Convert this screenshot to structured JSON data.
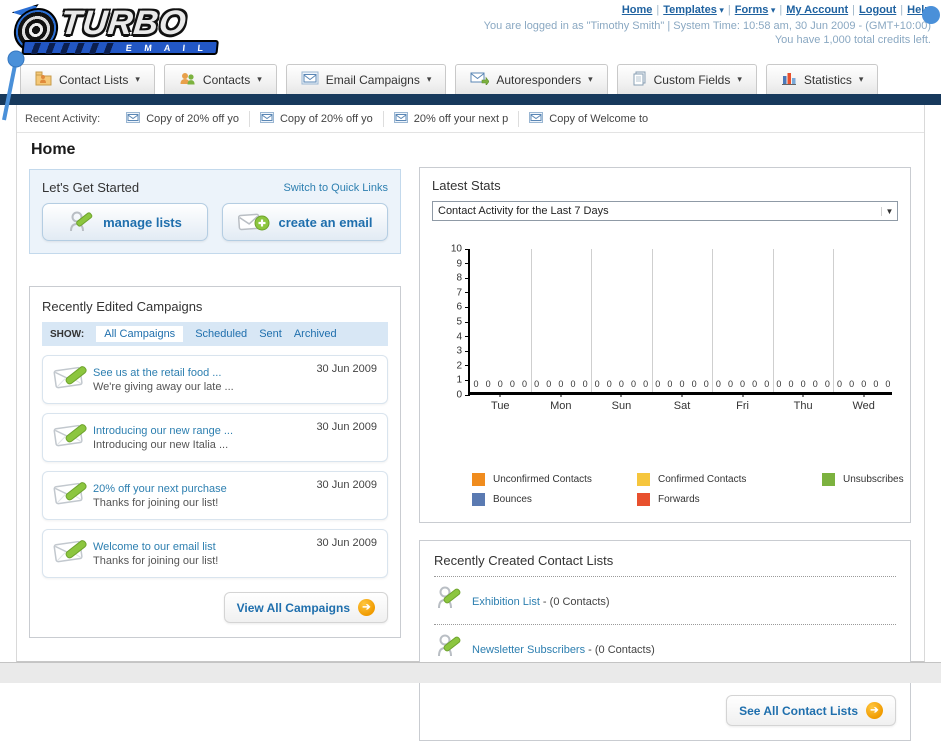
{
  "header": {
    "logo_title": "TURBO",
    "logo_subtitle": "E M A I L",
    "nav_links": [
      {
        "label": "Home",
        "dropdown": false
      },
      {
        "label": "Templates",
        "dropdown": true
      },
      {
        "label": "Forms",
        "dropdown": true
      },
      {
        "label": "My Account",
        "dropdown": false
      },
      {
        "label": "Logout",
        "dropdown": false
      },
      {
        "label": "Help",
        "dropdown": false
      }
    ],
    "login_line": "You are logged in as \"Timothy Smith\" | System Time: 10:58 am, 30 Jun 2009 - (GMT+10:00)",
    "credits_line": "You have 1,000 total credits left."
  },
  "nav_tabs": [
    {
      "label": "Contact Lists",
      "icon": "folder-user-icon"
    },
    {
      "label": "Contacts",
      "icon": "users-icon"
    },
    {
      "label": "Email Campaigns",
      "icon": "envelope-icon"
    },
    {
      "label": "Autoresponders",
      "icon": "envelope-forward-icon"
    },
    {
      "label": "Custom Fields",
      "icon": "pages-icon"
    },
    {
      "label": "Statistics",
      "icon": "bar-chart-icon"
    }
  ],
  "recent_activity": {
    "label": "Recent Activity:",
    "items": [
      "Copy of 20% off yo",
      "Copy of 20% off yo",
      "20% off your next p",
      "Copy of Welcome to"
    ]
  },
  "page_title": "Home",
  "get_started": {
    "title": "Let's Get Started",
    "switch_link": "Switch to Quick Links",
    "manage_lists_label": "manage lists",
    "create_email_label": "create an email"
  },
  "campaigns": {
    "title": "Recently Edited Campaigns",
    "show_label": "SHOW:",
    "filters": [
      "All Campaigns",
      "Scheduled",
      "Sent",
      "Archived"
    ],
    "active_filter": "All Campaigns",
    "items": [
      {
        "title": "See us at the retail food ...",
        "subtitle": "We're giving away our late ...",
        "date": "30 Jun 2009"
      },
      {
        "title": "Introducing our new range ...",
        "subtitle": "Introducing our new Italia ...",
        "date": "30 Jun 2009"
      },
      {
        "title": "20% off your next purchase",
        "subtitle": "Thanks for joining our list!",
        "date": "30 Jun 2009"
      },
      {
        "title": "Welcome to our email list",
        "subtitle": "Thanks for joining our list!",
        "date": "30 Jun 2009"
      }
    ],
    "view_all_label": "View All Campaigns"
  },
  "latest_stats": {
    "title": "Latest Stats",
    "selected_report": "Contact Activity for the Last 7 Days"
  },
  "chart_data": {
    "type": "bar",
    "title": "Contact Activity for the Last 7 Days",
    "categories": [
      "Tue",
      "Mon",
      "Sun",
      "Sat",
      "Fri",
      "Thu",
      "Wed"
    ],
    "series": [
      {
        "name": "Unconfirmed Contacts",
        "color": "#f08c1e",
        "values": [
          0,
          0,
          0,
          0,
          0,
          0,
          0
        ]
      },
      {
        "name": "Confirmed Contacts",
        "color": "#f6c63d",
        "values": [
          0,
          0,
          0,
          0,
          0,
          0,
          0
        ]
      },
      {
        "name": "Unsubscribes",
        "color": "#7cb23f",
        "values": [
          0,
          0,
          0,
          0,
          0,
          0,
          0
        ]
      },
      {
        "name": "Bounces",
        "color": "#5a7ab2",
        "values": [
          0,
          0,
          0,
          0,
          0,
          0,
          0
        ]
      },
      {
        "name": "Forwards",
        "color": "#e8502e",
        "values": [
          0,
          0,
          0,
          0,
          0,
          0,
          0
        ]
      }
    ],
    "ylim": [
      0,
      10
    ],
    "yticks": [
      0,
      1,
      2,
      3,
      4,
      5,
      6,
      7,
      8,
      9,
      10
    ],
    "grid": "vertical",
    "legend_position": "bottom",
    "value_labels_shown": true
  },
  "contact_lists": {
    "title": "Recently Created Contact Lists",
    "items": [
      {
        "name": "Exhibition List",
        "suffix": " - (0 Contacts)"
      },
      {
        "name": "Newsletter Subscribers",
        "suffix": " - (0 Contacts)"
      }
    ],
    "see_all_label": "See All Contact Lists"
  },
  "colors": {
    "navy_bar": "#17395c",
    "link_blue": "#1f62a0",
    "campaign_link": "#2d7fb0",
    "accent_orange": "#f09b00",
    "logo_blue": "#2257c5"
  }
}
